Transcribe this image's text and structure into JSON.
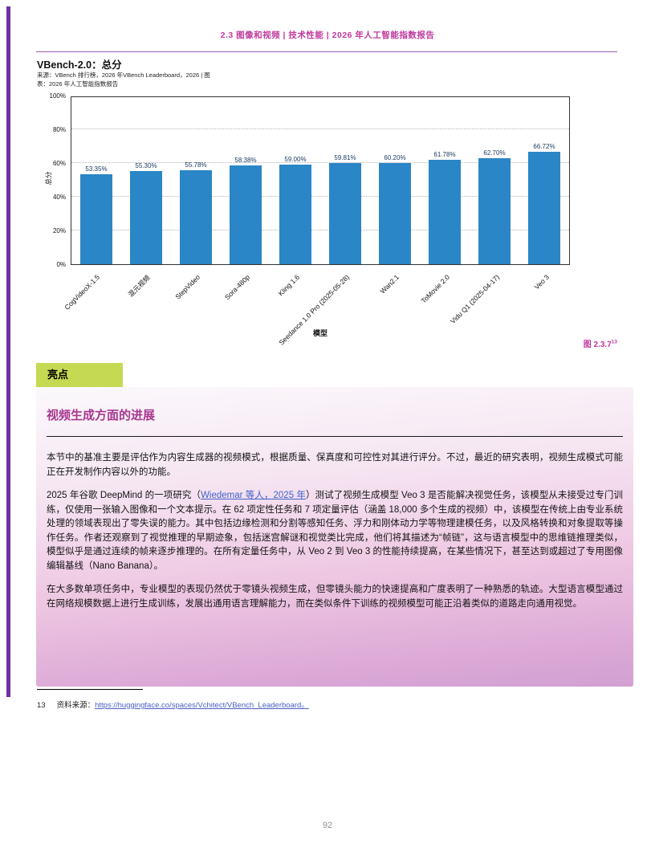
{
  "colors": {
    "accent_magenta": "#c0399e",
    "box_title_magenta": "#a8368f",
    "side_bar_purple": "#7030a0",
    "bar_blue": "#2a86c6",
    "value_label_navy": "#17375e",
    "tag_green": "#c6d952",
    "link_blue": "#3f63c8"
  },
  "header": {
    "breadcrumb": "2.3 图像和视频 | 技术性能 | 2026 年人工智能指数报告"
  },
  "chart": {
    "title": "VBench-2.0：总分",
    "source_line1": "来源：VBench 排行榜，2026 年VBench Leaderboard，2026 | 图",
    "source_line2": "表：2026 年人工智能指数报告",
    "figure_label": "图 2.3.7",
    "figure_footnote_ref": "13"
  },
  "chart_data": {
    "type": "bar",
    "title": "VBench-2.0：总分",
    "xlabel": "模型",
    "ylabel": "总分",
    "ylim": [
      0,
      100
    ],
    "yticks": [
      "0%",
      "20%",
      "40%",
      "60%",
      "80%",
      "100%"
    ],
    "grid": "horizontal-dotted",
    "bar_color": "#2a86c6",
    "categories": [
      "CogVideoX-1.5",
      "混元视频",
      "StepVideo",
      "Sora-480p",
      "Kling 1.6",
      "Seedance 1.0 Pro (2025-05-28)",
      "Wan2.1",
      "ToMovie 2.0",
      "Vidu Q1 (2025-04-17)",
      "Veo 3"
    ],
    "values": [
      53.35,
      55.3,
      55.78,
      58.38,
      59.0,
      59.81,
      60.2,
      61.78,
      62.7,
      66.72
    ],
    "value_labels": [
      "53.35%",
      "55.30%",
      "55.78%",
      "58.38%",
      "59.00%",
      "59.81%",
      "60.20%",
      "61.78%",
      "62.70%",
      "66.72%"
    ]
  },
  "highlight": {
    "tag": "亮点",
    "title": "视频生成方面的进展",
    "paragraph1": "本节中的基准主要是评估作为内容生成器的视频模式，根据质量、保真度和可控性对其进行评分。不过，最近的研究表明，视频生成模式可能正在开发制作内容以外的功能。",
    "paragraph2_before_link": "2025 年谷歌 DeepMind 的一项研究（",
    "paragraph2_link": "Wiedemar 等人，2025 年",
    "paragraph2_after_link": "）测试了视频生成模型 Veo 3 是否能解决视觉任务，该模型从未接受过专门训练，仅使用一张输入图像和一个文本提示。在 62 项定性任务和 7 项定量评估（涵盖 18,000 多个生成的视频）中，该模型在传统上由专业系统处理的领域表现出了零失误的能力。其中包括边缘检测和分割等感知任务、浮力和刚体动力学等物理建模任务，以及风格转换和对象提取等操作任务。作者还观察到了视觉推理的早期迹象，包括迷宫解谜和视觉类比完成，他们将其描述为“帧链”，这与语言模型中的思维链推理类似，模型似乎是通过连续的帧来逐步推理的。在所有定量任务中，从 Veo 2 到 Veo 3 的性能持续提高，在某些情况下，甚至达到或超过了专用图像编辑基线（Nano Banana）。",
    "paragraph3": "在大多数单项任务中，专业模型的表现仍然优于零镜头视频生成，但零镜头能力的快速提高和广度表明了一种熟悉的轨迹。大型语言模型通过在网络规模数据上进行生成训练，发展出通用语言理解能力，而在类似条件下训练的视频模型可能正沿着类似的道路走向通用视觉。"
  },
  "footnote": {
    "number": "13",
    "label": "资料来源：",
    "link": "https://huggingface.co/spaces/Vchitect/VBench_Leaderboard。"
  },
  "page_number": "92"
}
